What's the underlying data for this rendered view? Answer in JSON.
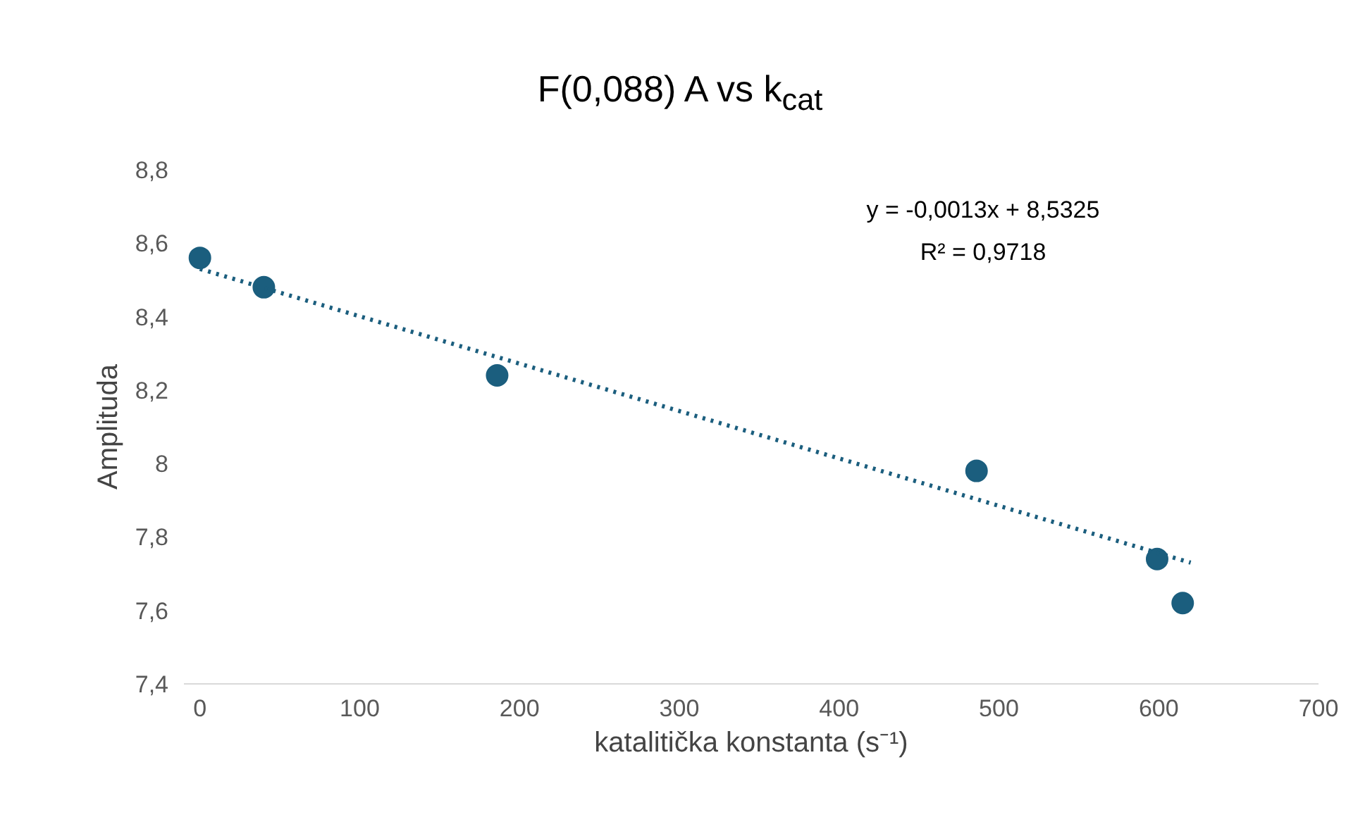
{
  "chart_data": {
    "type": "scatter",
    "title": "F(0,088) A vs k$_{cat}$",
    "xlabel": "katalitička konstanta (s⁻¹)",
    "ylabel": "Amplituda",
    "series": [
      {
        "color": "#1b5e7e",
        "x": [
          0,
          40,
          186,
          486,
          599,
          615
        ],
        "values": [
          8.56,
          8.48,
          8.24,
          7.98,
          7.74,
          7.62
        ],
        "marker": "circle"
      },
      {
        "type": "line",
        "color": "#1b5e7e",
        "x": [
          0,
          620
        ],
        "values": [
          8.53,
          7.73
        ],
        "line_style": "dotted"
      }
    ],
    "annotations": [
      "y = -0,0013x + 8,5325",
      "R² = 0,9718"
    ],
    "xlim": [
      -10,
      700
    ],
    "ylim": [
      7.4,
      8.8
    ],
    "xticks": [
      0,
      100,
      200,
      300,
      400,
      500,
      600,
      700
    ],
    "yticks": [
      {
        "value": 7.4,
        "label": "7,4"
      },
      {
        "value": 7.6,
        "label": "7,6"
      },
      {
        "value": 7.8,
        "label": "7,8"
      },
      {
        "value": 8,
        "label": "8"
      },
      {
        "value": 8.2,
        "label": "8,2"
      },
      {
        "value": 8.4,
        "label": "8,4"
      },
      {
        "value": 8.6,
        "label": "8,6"
      },
      {
        "value": 8.8,
        "label": "8,8"
      }
    ],
    "grid": false
  }
}
